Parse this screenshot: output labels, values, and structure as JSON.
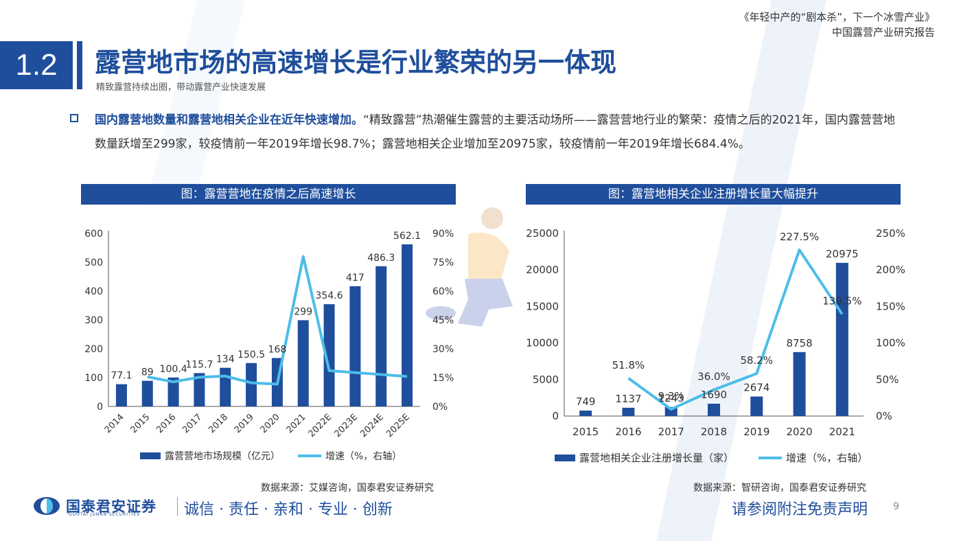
{
  "header": {
    "report_title": "《年轻中产的“剧本杀”，下一个冰雪产业》",
    "report_subtitle": "中国露营产业研究报告"
  },
  "section": {
    "number": "1.2",
    "title": "露营地市场的高速增长是行业繁荣的另一体现",
    "subtitle": "精致露营持续出圈，带动露营产业快速发展"
  },
  "bullet": {
    "highlight": "国内露营地数量和露营地相关企业在近年快速增加。",
    "text": "“精致露营”热潮催生露营的主要活动场所——露营营地行业的繁荣：疫情之后的2021年，国内露营营地数量跃增至299家，较疫情前一年2019年增长98.7%；露营地相关企业增加至20975家，较疫情前一年2019年增长684.4%。"
  },
  "chart_left_header": "图：露营营地在疫情之后高速增长",
  "chart_right_header": "图：露营地相关企业注册增长量大幅提升",
  "source_left": "数据来源：艾媒咨询，国泰君安证券研究",
  "source_right": "数据来源：智研咨询，国泰君安证券研究",
  "chart_data": [
    {
      "type": "bar+line",
      "categories": [
        "2014",
        "2015",
        "2016",
        "2017",
        "2018",
        "2019",
        "2020",
        "2021",
        "2022E",
        "2023E",
        "2024E",
        "2025E"
      ],
      "series": [
        {
          "name": "露营营地市场规模（亿元）",
          "type": "bar",
          "axis": "left",
          "values": [
            77.1,
            89,
            100.4,
            115.7,
            134,
            150.5,
            168,
            299,
            354.6,
            417,
            486.3,
            562.1
          ],
          "labels": [
            "77.1",
            "89",
            "100.4",
            "115.7",
            "134",
            "150.5",
            "168",
            "299",
            "354.6",
            "417",
            "486.3",
            "562.1"
          ]
        },
        {
          "name": "增速（%，右轴）",
          "type": "line",
          "axis": "right",
          "values": [
            null,
            15.4,
            12.8,
            15.2,
            15.8,
            12.3,
            11.6,
            78.0,
            18.6,
            17.6,
            16.6,
            15.6
          ]
        }
      ],
      "ylim_left": [
        0,
        600
      ],
      "yticks_left": [
        "0",
        "100",
        "200",
        "300",
        "400",
        "500",
        "600"
      ],
      "ylim_right": [
        0,
        90
      ],
      "yticks_right": [
        "0%",
        "15%",
        "30%",
        "45%",
        "60%",
        "75%",
        "90%"
      ],
      "colors": {
        "bar": "#1f4e9c",
        "line": "#4dbde9"
      },
      "legend_position": "bottom"
    },
    {
      "type": "bar+line",
      "categories": [
        "2015",
        "2016",
        "2017",
        "2018",
        "2019",
        "2020",
        "2021"
      ],
      "series": [
        {
          "name": "露营地相关企业注册增长量（家）",
          "type": "bar",
          "axis": "left",
          "values": [
            749,
            1137,
            1243,
            1690,
            2674,
            8758,
            20975
          ],
          "labels": [
            "749",
            "1137",
            "1243",
            "1690",
            "2674",
            "8758",
            "20975"
          ]
        },
        {
          "name": "增速（%，右轴）",
          "type": "line",
          "axis": "right",
          "values": [
            null,
            51.8,
            9.3,
            36.0,
            58.2,
            227.5,
            139.5
          ],
          "labels": [
            "",
            "51.8%",
            "9.3%",
            "36.0%",
            "58.2%",
            "227.5%",
            "139.5%"
          ]
        }
      ],
      "ylim_left": [
        0,
        25000
      ],
      "yticks_left": [
        "0",
        "5000",
        "10000",
        "15000",
        "20000",
        "25000"
      ],
      "ylim_right": [
        0,
        250
      ],
      "yticks_right": [
        "0%",
        "50%",
        "100%",
        "150%",
        "200%",
        "250%"
      ],
      "colors": {
        "bar": "#1f4e9c",
        "line": "#4dbde9"
      },
      "legend_position": "bottom"
    }
  ],
  "footer": {
    "logo_name": "国泰君安证券",
    "logo_en": "GUOTAI JUNAN SECURITIES",
    "motto": "诚信 · 责任 · 亲和 · 专业 · 创新",
    "disclaimer": "请参阅附注免责声明",
    "page": "9"
  }
}
